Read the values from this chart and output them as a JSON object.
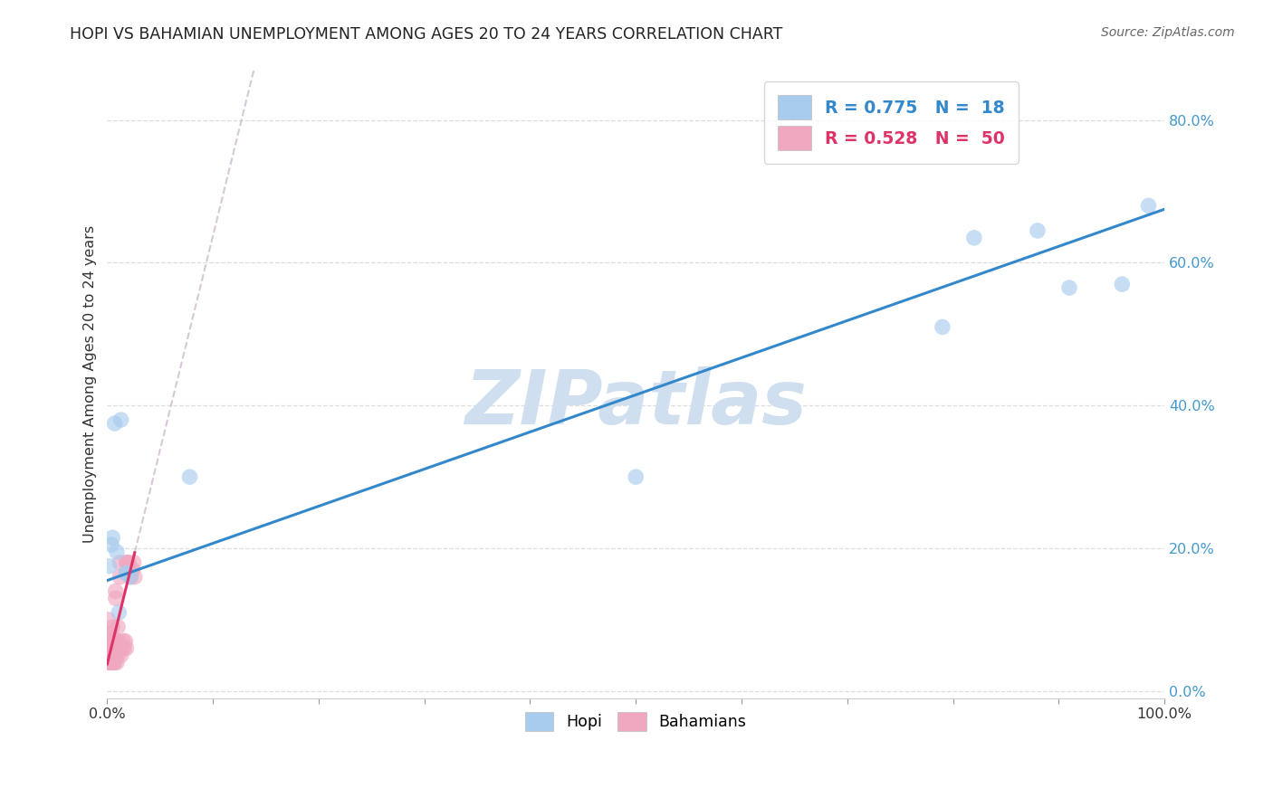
{
  "title": "HOPI VS BAHAMIAN UNEMPLOYMENT AMONG AGES 20 TO 24 YEARS CORRELATION CHART",
  "source": "Source: ZipAtlas.com",
  "ylabel": "Unemployment Among Ages 20 to 24 years",
  "xlim": [
    0,
    1.0
  ],
  "ylim": [
    -0.01,
    0.87
  ],
  "xticks": [
    0.0,
    0.1,
    0.2,
    0.3,
    0.4,
    0.5,
    0.6,
    0.7,
    0.8,
    0.9,
    1.0
  ],
  "yticks": [
    0.0,
    0.2,
    0.4,
    0.6,
    0.8
  ],
  "hopi_R": 0.775,
  "hopi_N": 18,
  "bahamian_R": 0.528,
  "bahamian_N": 50,
  "hopi_color": "#a8ccee",
  "bahamian_color": "#f0a8c0",
  "hopi_line_color": "#3388cc",
  "bahamian_line_color": "#dd3366",
  "dashed_line_color": "#ccbbcc",
  "hopi_scatter_x": [
    0.002,
    0.004,
    0.005,
    0.007,
    0.009,
    0.011,
    0.013,
    0.018,
    0.022,
    0.078,
    0.018,
    0.5,
    0.79,
    0.82,
    0.88,
    0.91,
    0.96,
    0.985
  ],
  "hopi_scatter_y": [
    0.175,
    0.205,
    0.215,
    0.375,
    0.195,
    0.11,
    0.38,
    0.165,
    0.16,
    0.3,
    0.165,
    0.3,
    0.51,
    0.635,
    0.645,
    0.565,
    0.57,
    0.68
  ],
  "bahamian_scatter_x": [
    0.001,
    0.001,
    0.001,
    0.001,
    0.002,
    0.002,
    0.002,
    0.003,
    0.003,
    0.003,
    0.003,
    0.004,
    0.004,
    0.004,
    0.005,
    0.005,
    0.005,
    0.005,
    0.006,
    0.006,
    0.007,
    0.007,
    0.007,
    0.008,
    0.008,
    0.008,
    0.009,
    0.009,
    0.01,
    0.01,
    0.01,
    0.011,
    0.012,
    0.012,
    0.013,
    0.014,
    0.015,
    0.016,
    0.017,
    0.018,
    0.018,
    0.019,
    0.02,
    0.021,
    0.022,
    0.024,
    0.025,
    0.026,
    0.012,
    0.008
  ],
  "bahamian_scatter_y": [
    0.04,
    0.05,
    0.06,
    0.1,
    0.04,
    0.06,
    0.08,
    0.04,
    0.05,
    0.06,
    0.08,
    0.04,
    0.05,
    0.07,
    0.04,
    0.05,
    0.07,
    0.09,
    0.04,
    0.06,
    0.04,
    0.05,
    0.07,
    0.05,
    0.07,
    0.13,
    0.04,
    0.06,
    0.05,
    0.07,
    0.09,
    0.06,
    0.06,
    0.18,
    0.05,
    0.06,
    0.07,
    0.06,
    0.07,
    0.06,
    0.18,
    0.18,
    0.18,
    0.17,
    0.16,
    0.17,
    0.18,
    0.16,
    0.16,
    0.14
  ],
  "hopi_line_x_start": 0.0,
  "hopi_line_x_end": 1.0,
  "hopi_line_intercept": 0.155,
  "hopi_line_slope": 0.52,
  "bahamian_line_intercept": 0.038,
  "bahamian_line_slope": 6.0,
  "bahamian_dashed_intercept": 0.038,
  "bahamian_dashed_slope": 6.0,
  "watermark": "ZIPatlas",
  "watermark_color": "#d0dff0",
  "background_color": "#ffffff",
  "grid_color": "#dddddd",
  "marker_size": 160,
  "marker_alpha": 0.65
}
